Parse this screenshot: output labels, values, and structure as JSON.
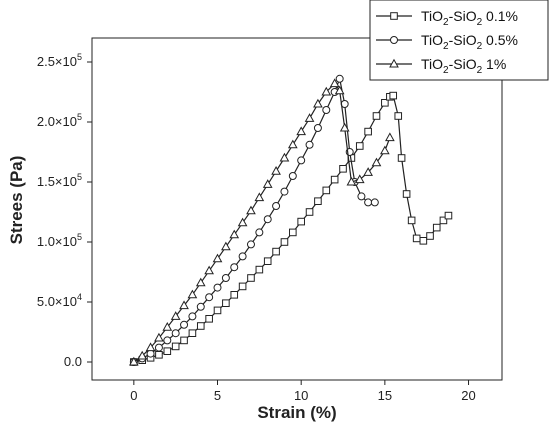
{
  "chart_data": {
    "type": "line",
    "title": "",
    "xlabel": "Strain (%)",
    "ylabel": "Strees (Pa)",
    "xlim": [
      -2.5,
      22
    ],
    "ylim": [
      -15000,
      270000
    ],
    "x_ticks": [
      {
        "value": 0,
        "label": "0"
      },
      {
        "value": 5,
        "label": "5"
      },
      {
        "value": 10,
        "label": "10"
      },
      {
        "value": 15,
        "label": "15"
      },
      {
        "value": 20,
        "label": "20"
      }
    ],
    "y_ticks": [
      {
        "value": 0,
        "mantissa": "0.0",
        "exp": ""
      },
      {
        "value": 50000,
        "mantissa": "5.0×10",
        "exp": "4"
      },
      {
        "value": 100000,
        "mantissa": "1.0×10",
        "exp": "5"
      },
      {
        "value": 150000,
        "mantissa": "1.5×10",
        "exp": "5"
      },
      {
        "value": 200000,
        "mantissa": "2.0×10",
        "exp": "5"
      },
      {
        "value": 250000,
        "mantissa": "2.5×10",
        "exp": "5"
      }
    ],
    "grid": false,
    "legend_position": "top-right",
    "series": [
      {
        "name": "TiO2-SiO2 0.1%",
        "legend": {
          "a": "TiO",
          "a_sub": "2",
          "b": "-SiO",
          "b_sub": "2",
          "c": " 0.1%"
        },
        "marker": "square",
        "x": [
          0,
          0.5,
          1,
          1.5,
          2,
          2.5,
          3,
          3.5,
          4,
          4.5,
          5,
          5.5,
          6,
          6.5,
          7,
          7.5,
          8,
          8.5,
          9,
          9.5,
          10,
          10.5,
          11,
          11.5,
          12,
          12.5,
          13,
          13.5,
          14,
          14.5,
          15,
          15.3,
          15.5,
          15.8,
          16,
          16.3,
          16.6,
          16.9,
          17.3,
          17.7,
          18.1,
          18.5,
          18.8
        ],
        "y": [
          0,
          1500,
          3500,
          6000,
          9000,
          13000,
          18000,
          24000,
          30000,
          36000,
          43000,
          49000,
          56000,
          63000,
          70000,
          77000,
          84000,
          92000,
          100000,
          108000,
          117000,
          125000,
          134000,
          143000,
          152000,
          161000,
          170000,
          180000,
          192000,
          205000,
          216000,
          221000,
          222000,
          205000,
          170000,
          140000,
          118000,
          103000,
          101000,
          105000,
          112000,
          118000,
          122000
        ]
      },
      {
        "name": "TiO2-SiO2 0.5%",
        "legend": {
          "a": "TiO",
          "a_sub": "2",
          "b": "-SiO",
          "b_sub": "2",
          "c": " 0.5%"
        },
        "marker": "circle",
        "x": [
          0,
          0.5,
          1,
          1.5,
          2,
          2.5,
          3,
          3.5,
          4,
          4.5,
          5,
          5.5,
          6,
          6.5,
          7,
          7.5,
          8,
          8.5,
          9,
          9.5,
          10,
          10.5,
          11,
          11.5,
          12,
          12.3,
          12.6,
          12.9,
          13.2,
          13.6,
          14,
          14.4
        ],
        "y": [
          0,
          3000,
          7000,
          12000,
          18000,
          24000,
          31000,
          38000,
          46000,
          54000,
          62000,
          70000,
          79000,
          88000,
          98000,
          108000,
          119000,
          130000,
          142000,
          155000,
          168000,
          181000,
          195000,
          210000,
          225000,
          236000,
          215000,
          175000,
          150000,
          138000,
          133000,
          133000
        ]
      },
      {
        "name": "TiO2-SiO2 1%",
        "legend": {
          "a": "TiO",
          "a_sub": "2",
          "b": "-SiO",
          "b_sub": "2",
          "c": " 1%"
        },
        "marker": "triangle",
        "x": [
          0,
          0.5,
          1,
          1.5,
          2,
          2.5,
          3,
          3.5,
          4,
          4.5,
          5,
          5.5,
          6,
          6.5,
          7,
          7.5,
          8,
          8.5,
          9,
          9.5,
          10,
          10.5,
          11,
          11.5,
          12,
          12.3,
          12.6,
          13,
          13.5,
          14,
          14.5,
          15,
          15.3
        ],
        "y": [
          0,
          5000,
          12000,
          20000,
          29000,
          38000,
          47000,
          56000,
          66000,
          76000,
          86000,
          96000,
          106000,
          116000,
          126000,
          137000,
          148000,
          159000,
          170000,
          181000,
          192000,
          203000,
          215000,
          225000,
          232000,
          226000,
          195000,
          150000,
          152000,
          158000,
          166000,
          176000,
          187000
        ]
      }
    ]
  }
}
